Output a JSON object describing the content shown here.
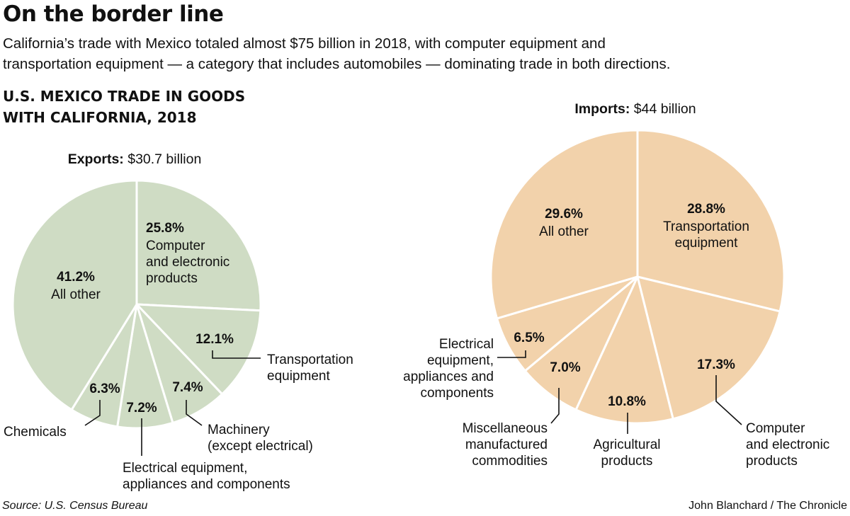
{
  "title": "On the border line",
  "subtitle": [
    "California’s trade with Mexico totaled almost $75 billion in 2018, with computer equipment and",
    "transportation equipment — a category that includes automobiles — dominating trade in both directions."
  ],
  "section_heading": [
    "U.S. MEXICO TRADE IN GOODS",
    "WITH CALIFORNIA, 2018"
  ],
  "source": "Source: U.S. Census Bureau",
  "credit": "John Blanchard / The Chronicle",
  "chart_data": [
    {
      "type": "pie",
      "title_label": "Exports:",
      "title_value": "$30.7 billion",
      "color": "#cfdcc4",
      "start": "12 o'clock, clockwise",
      "slices": [
        {
          "value": 25.8,
          "pct": "25.8%",
          "label": [
            "Computer",
            "and electronic",
            "products"
          ]
        },
        {
          "value": 12.1,
          "pct": "12.1%",
          "label": [
            "Transportation",
            "equipment"
          ]
        },
        {
          "value": 7.4,
          "pct": "7.4%",
          "label": [
            "Machinery",
            "(except electrical)"
          ]
        },
        {
          "value": 7.2,
          "pct": "7.2%",
          "label": [
            "Electrical equipment,",
            "appliances and components"
          ]
        },
        {
          "value": 6.3,
          "pct": "6.3%",
          "label": [
            "Chemicals"
          ]
        },
        {
          "value": 41.2,
          "pct": "41.2%",
          "label": [
            "All other"
          ]
        }
      ]
    },
    {
      "type": "pie",
      "title_label": "Imports:",
      "title_value": "$44 billion",
      "color": "#f2d2ab",
      "start": "12 o'clock, clockwise",
      "slices": [
        {
          "value": 28.8,
          "pct": "28.8%",
          "label": [
            "Transportation",
            "equipment"
          ]
        },
        {
          "value": 17.3,
          "pct": "17.3%",
          "label": [
            "Computer",
            "and electronic",
            "products"
          ]
        },
        {
          "value": 10.8,
          "pct": "10.8%",
          "label": [
            "Agricultural",
            "products"
          ]
        },
        {
          "value": 7.0,
          "pct": "7.0%",
          "label": [
            "Miscellaneous",
            "manufactured",
            "commodities"
          ]
        },
        {
          "value": 6.5,
          "pct": "6.5%",
          "label": [
            "Electrical",
            "equipment,",
            "appliances and",
            "components"
          ]
        },
        {
          "value": 29.6,
          "pct": "29.6%",
          "label": [
            "All other"
          ]
        }
      ]
    }
  ]
}
